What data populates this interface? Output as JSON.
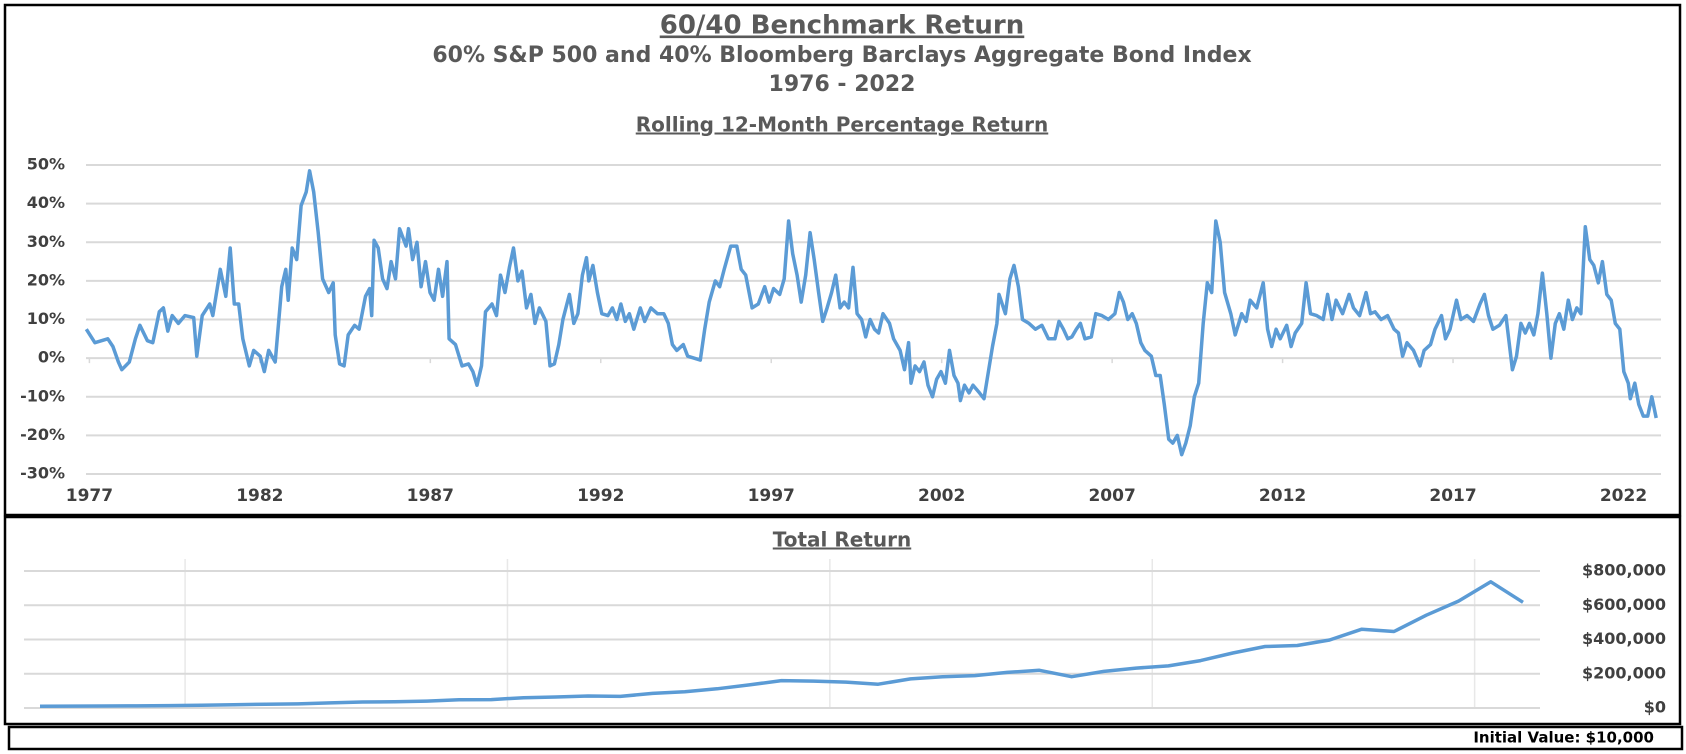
{
  "chart_data": [
    {
      "type": "line",
      "title": "60/40 Benchmark Return",
      "subtitle": [
        "60% S&P 500 and 40% Bloomberg Barclays Aggregate Bond Index",
        "1976 - 2022"
      ],
      "caption": "Rolling 12-Month Percentage Return",
      "x": [
        1976.91,
        1977.16,
        1977.54,
        1977.69,
        1977.85,
        1977.95,
        1978.17,
        1978.35,
        1978.48,
        1978.7,
        1978.86,
        1979.05,
        1979.17,
        1979.3,
        1979.43,
        1979.61,
        1979.8,
        1980.06,
        1980.15,
        1980.31,
        1980.53,
        1980.62,
        1980.84,
        1981.0,
        1981.13,
        1981.25,
        1981.38,
        1981.5,
        1981.69,
        1981.82,
        1982.01,
        1982.13,
        1982.26,
        1982.45,
        1982.64,
        1982.76,
        1982.83,
        1982.95,
        1983.08,
        1983.21,
        1983.36,
        1983.46,
        1983.58,
        1983.71,
        1983.84,
        1984.02,
        1984.15,
        1984.21,
        1984.34,
        1984.47,
        1984.59,
        1984.78,
        1984.91,
        1985.1,
        1985.22,
        1985.28,
        1985.35,
        1985.47,
        1985.6,
        1985.73,
        1985.85,
        1985.98,
        1986.1,
        1986.29,
        1986.36,
        1986.48,
        1986.61,
        1986.73,
        1986.86,
        1986.99,
        1987.11,
        1987.24,
        1987.36,
        1987.49,
        1987.55,
        1987.74,
        1987.93,
        1988.12,
        1988.25,
        1988.37,
        1988.5,
        1988.62,
        1988.81,
        1988.94,
        1989.06,
        1989.19,
        1989.32,
        1989.44,
        1989.57,
        1989.69,
        1989.82,
        1989.95,
        1990.07,
        1990.2,
        1990.39,
        1990.51,
        1990.64,
        1990.77,
        1990.89,
        1991.08,
        1991.21,
        1991.33,
        1991.46,
        1991.58,
        1991.65,
        1991.77,
        1991.9,
        1992.03,
        1992.21,
        1992.34,
        1992.47,
        1992.59,
        1992.72,
        1992.84,
        1992.97,
        1993.16,
        1993.29,
        1993.47,
        1993.66,
        1993.85,
        1993.98,
        1994.1,
        1994.23,
        1994.42,
        1994.55,
        1994.73,
        1994.92,
        1995.05,
        1995.18,
        1995.36,
        1995.49,
        1995.62,
        1995.81,
        1995.99,
        1996.12,
        1996.25,
        1996.44,
        1996.62,
        1996.81,
        1996.94,
        1997.07,
        1997.25,
        1997.38,
        1997.51,
        1997.63,
        1997.76,
        1997.88,
        1998.01,
        1998.14,
        1998.26,
        1998.39,
        1998.51,
        1998.64,
        1998.77,
        1998.89,
        1999.02,
        1999.14,
        1999.27,
        1999.4,
        1999.52,
        1999.65,
        1999.77,
        1999.9,
        2000.03,
        2000.15,
        2000.28,
        2000.47,
        2000.59,
        2000.78,
        2000.91,
        2001.03,
        2001.1,
        2001.22,
        2001.35,
        2001.48,
        2001.6,
        2001.73,
        2001.85,
        2001.98,
        2002.11,
        2002.23,
        2002.36,
        2002.48,
        2002.55,
        2002.67,
        2002.8,
        2002.92,
        2003.11,
        2003.24,
        2003.37,
        2003.49,
        2003.62,
        2003.68,
        2003.87,
        2004.0,
        2004.12,
        2004.25,
        2004.37,
        2004.56,
        2004.75,
        2004.94,
        2005.13,
        2005.32,
        2005.44,
        2005.57,
        2005.7,
        2005.82,
        2005.95,
        2006.07,
        2006.2,
        2006.39,
        2006.52,
        2006.7,
        2006.89,
        2007.08,
        2007.21,
        2007.33,
        2007.46,
        2007.59,
        2007.71,
        2007.84,
        2007.96,
        2008.15,
        2008.28,
        2008.41,
        2008.53,
        2008.66,
        2008.78,
        2008.91,
        2009.04,
        2009.16,
        2009.29,
        2009.41,
        2009.54,
        2009.67,
        2009.79,
        2009.92,
        2010.04,
        2010.17,
        2010.3,
        2010.48,
        2010.61,
        2010.8,
        2010.93,
        2011.05,
        2011.24,
        2011.43,
        2011.56,
        2011.68,
        2011.81,
        2011.93,
        2012.12,
        2012.25,
        2012.37,
        2012.56,
        2012.69,
        2012.82,
        2013.0,
        2013.19,
        2013.32,
        2013.45,
        2013.57,
        2013.76,
        2013.95,
        2014.08,
        2014.26,
        2014.45,
        2014.58,
        2014.71,
        2014.89,
        2015.08,
        2015.27,
        2015.4,
        2015.52,
        2015.65,
        2015.84,
        2016.03,
        2016.15,
        2016.34,
        2016.47,
        2016.66,
        2016.78,
        2016.91,
        2017.1,
        2017.23,
        2017.41,
        2017.6,
        2017.79,
        2017.92,
        2018.04,
        2018.17,
        2018.36,
        2018.55,
        2018.74,
        2018.86,
        2018.99,
        2019.12,
        2019.24,
        2019.37,
        2019.49,
        2019.62,
        2019.75,
        2019.87,
        2020.0,
        2020.12,
        2020.25,
        2020.38,
        2020.5,
        2020.63,
        2020.75,
        2020.88,
        2021.01,
        2021.13,
        2021.26,
        2021.38,
        2021.51,
        2021.64,
        2021.76,
        2021.89,
        2022.01,
        2022.14,
        2022.2,
        2022.33,
        2022.45,
        2022.58,
        2022.71,
        2022.83,
        2022.96
      ],
      "series": [
        {
          "color": "#5b9bd5",
          "values": [
            7.5,
            4,
            5,
            3,
            -1,
            -3,
            -1,
            5,
            8.5,
            4.5,
            4,
            12,
            13,
            7,
            11,
            9,
            11,
            10.5,
            0.5,
            11,
            14,
            11,
            23,
            16,
            28.5,
            14,
            14,
            5,
            -2,
            2,
            0.5,
            -3.5,
            2,
            -1,
            18.5,
            23,
            15,
            28.5,
            25.5,
            39.5,
            43,
            48.5,
            43,
            32.5,
            20.5,
            17,
            19.5,
            6,
            -1.5,
            -2,
            6,
            8.5,
            7.5,
            16,
            18,
            11,
            30.5,
            28.5,
            20.5,
            18,
            25,
            20.5,
            33.5,
            29,
            33.5,
            25.5,
            30,
            18.5,
            25,
            17,
            15,
            23,
            16,
            25,
            5,
            3.5,
            -2,
            -1.5,
            -3.5,
            -7,
            -2,
            12,
            14,
            11,
            21.5,
            17,
            23.5,
            28.5,
            20,
            22.5,
            13,
            16.5,
            9,
            13,
            9.5,
            -2,
            -1.5,
            3.5,
            10,
            16.5,
            9,
            11.5,
            21.5,
            26,
            20,
            24,
            17,
            11.5,
            11,
            13,
            10,
            14,
            9.5,
            11.5,
            7.5,
            13,
            9.5,
            13,
            11.5,
            11.5,
            9,
            3.5,
            2,
            3.5,
            0.5,
            0,
            -0.5,
            7.5,
            14.5,
            20,
            18.5,
            23,
            29,
            29,
            23,
            21.5,
            13,
            14,
            18.5,
            14.5,
            18,
            16.5,
            20.5,
            35.5,
            27,
            21.5,
            14.5,
            21.5,
            32.5,
            25.5,
            17,
            9.5,
            13,
            17,
            21.5,
            13,
            14.5,
            13,
            23.5,
            11.5,
            10,
            5.5,
            10,
            7.5,
            6.5,
            11.5,
            9,
            5,
            2,
            -3,
            4,
            -6.5,
            -2,
            -3.5,
            -1,
            -7,
            -10,
            -5.5,
            -3.5,
            -6.5,
            2,
            -4.5,
            -6.5,
            -11,
            -7,
            -9,
            -7,
            -9,
            -10.5,
            -3.5,
            3,
            9,
            16.5,
            11.5,
            20.5,
            24,
            18.5,
            10,
            9,
            7.5,
            8.5,
            5,
            5,
            9.5,
            7.5,
            5,
            5.5,
            7.5,
            9,
            5,
            5.5,
            11.5,
            11,
            10,
            11.5,
            17,
            14.5,
            10,
            11.5,
            9,
            4,
            2,
            0.5,
            -4.5,
            -4.5,
            -12,
            -21,
            -22,
            -20,
            -25,
            -22,
            -17.5,
            -10,
            -6.5,
            9,
            19.5,
            17,
            35.5,
            30,
            17,
            11.5,
            6,
            11.5,
            9.5,
            15,
            13,
            19.5,
            7.5,
            3,
            7.5,
            5,
            8.5,
            3,
            6.5,
            9,
            19.5,
            11.5,
            11,
            10,
            16.5,
            10,
            15,
            11.5,
            16.5,
            13,
            11,
            17,
            11.5,
            12,
            10,
            11,
            7.5,
            6.5,
            0.5,
            4,
            2,
            -2,
            2,
            3.5,
            7.5,
            11,
            5,
            7.5,
            15,
            10,
            11,
            9.5,
            14,
            16.5,
            11,
            7.5,
            8.5,
            11,
            -3,
            0.5,
            9,
            6.5,
            9,
            6,
            11.5,
            22,
            11.5,
            0,
            9,
            11.5,
            7.5,
            15,
            10,
            13,
            11.5,
            34,
            25.5,
            24,
            19.5,
            25,
            16.5,
            15,
            9,
            7.5,
            -3.5,
            -6.5,
            -10.5,
            -6.5,
            -12,
            -15,
            -15,
            -10,
            -15.5
          ]
        }
      ],
      "xlim": [
        1976.9,
        2023.1
      ],
      "xticks": [
        1977,
        1982,
        1987,
        1992,
        1997,
        2002,
        2007,
        2012,
        2017,
        2022
      ],
      "ylim": [
        -30,
        50
      ],
      "yticks": [
        {
          "value": -30,
          "label": "-30%"
        },
        {
          "value": -20,
          "label": "-20%"
        },
        {
          "value": -10,
          "label": "-10%"
        },
        {
          "value": 0,
          "label": "0%"
        },
        {
          "value": 10,
          "label": "10%"
        },
        {
          "value": 20,
          "label": "20%"
        },
        {
          "value": 30,
          "label": "30%"
        },
        {
          "value": 40,
          "label": "40%"
        },
        {
          "value": 50,
          "label": "50%"
        }
      ],
      "grid": true
    },
    {
      "type": "line",
      "title": "Total Return",
      "annotation": "Initial Value: $10,000",
      "series": [
        {
          "color": "#5b9bd5",
          "values": [
            10000,
            11000,
            11500,
            12500,
            14000,
            15500,
            19000,
            22000,
            24000,
            30000,
            35000,
            37000,
            40000,
            48000,
            49000,
            60000,
            64000,
            70000,
            68000,
            85000,
            95000,
            112000,
            135000,
            160000,
            157000,
            151000,
            139000,
            170000,
            183000,
            189000,
            208000,
            220000,
            183000,
            214000,
            233000,
            246000,
            277000,
            321000,
            359000,
            365000,
            397000,
            460000,
            447000,
            542000,
            624000,
            737000,
            617000
          ]
        }
      ],
      "ylim": [
        0,
        800000
      ],
      "yticks": [
        {
          "value": 0,
          "label": "$0"
        },
        {
          "value": 200000,
          "label": "$200,000"
        },
        {
          "value": 400000,
          "label": "$400,000"
        },
        {
          "value": 600000,
          "label": "$600,000"
        },
        {
          "value": 800000,
          "label": "$800,000"
        }
      ],
      "grid": true
    }
  ]
}
